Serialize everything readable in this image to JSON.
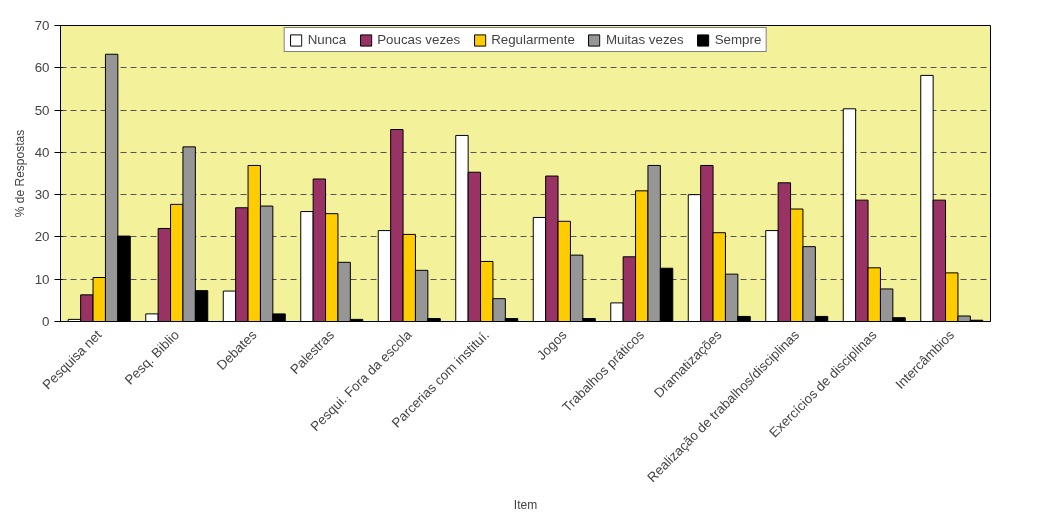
{
  "chart_data": {
    "type": "bar",
    "xlabel": "Item",
    "ylabel": "% de Respostas",
    "categories": [
      "Pesquisa net",
      "Pesq. Biblio",
      "Debates",
      "Palestras",
      "Pesqui. Fora da escola",
      "Parcerias com instituí.",
      "Jogos",
      "Trabalhos práticos",
      "Dramatizações",
      "Realização de trabalhos/disciplinas",
      "Exercícios de disciplinas",
      "Intercâmbios"
    ],
    "series": [
      {
        "name": "Nunca",
        "color": "#ffffff",
        "values": [
          0.5,
          1.8,
          7.2,
          26,
          21.5,
          44,
          24.6,
          4.4,
          30,
          21.5,
          50.3,
          58.2
        ]
      },
      {
        "name": "Poucas vezes",
        "color": "#993366",
        "values": [
          6.3,
          22,
          26.9,
          33.7,
          45.4,
          35.3,
          34.4,
          15.3,
          36.9,
          32.8,
          28.7,
          28.7
        ]
      },
      {
        "name": "Regularmente",
        "color": "#ffcc00",
        "values": [
          10.4,
          27.7,
          36.9,
          25.5,
          20.6,
          14.2,
          23.7,
          30.9,
          21,
          26.6,
          12.7,
          11.5
        ]
      },
      {
        "name": "Muitas vezes",
        "color": "#969696",
        "values": [
          63.2,
          41.3,
          27.3,
          14,
          12.1,
          5.4,
          15.7,
          36.9,
          11.2,
          17.7,
          7.7,
          1.3
        ]
      },
      {
        "name": "Sempre",
        "color": "#000000",
        "values": [
          20.2,
          7.3,
          1.8,
          0.5,
          0.7,
          0.7,
          0.7,
          12.6,
          1.2,
          1.2,
          0.9,
          0.3
        ]
      }
    ],
    "ylim": [
      0,
      70
    ],
    "yticks": [
      0,
      10,
      20,
      30,
      40,
      50,
      60,
      70
    ],
    "grid": "y",
    "legend": "top"
  }
}
